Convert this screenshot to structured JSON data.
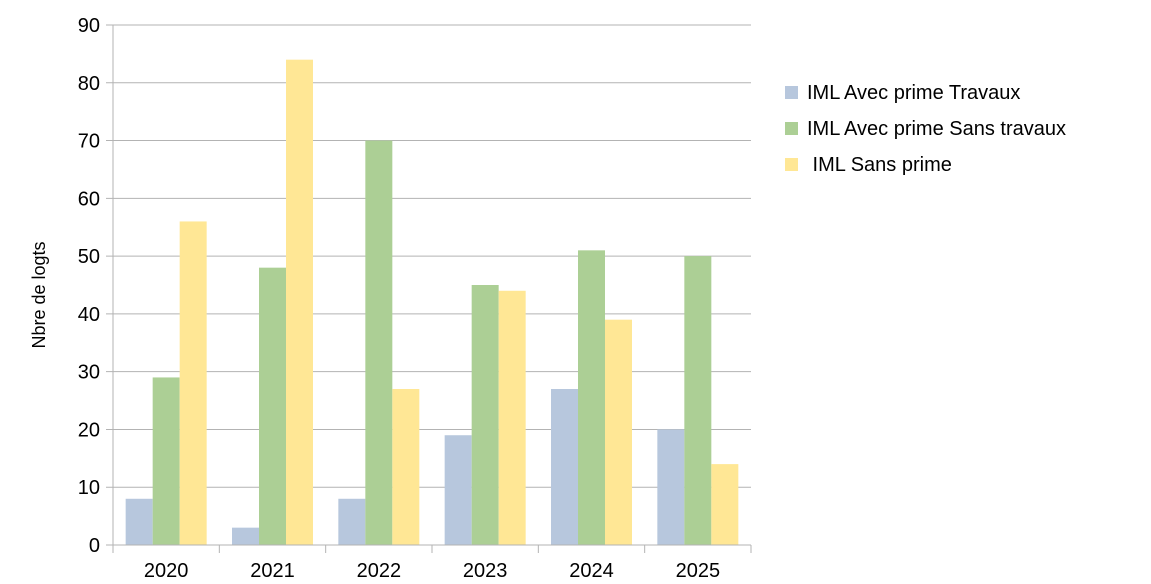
{
  "chart_data": {
    "type": "bar",
    "title": "",
    "xlabel": "",
    "ylabel": "Nbre de logts",
    "ylim": [
      0,
      90
    ],
    "yticks": [
      "0",
      "10",
      "20",
      "30",
      "40",
      "50",
      "60",
      "70",
      "80",
      "90"
    ],
    "categories": [
      "2020",
      "2021",
      "2022",
      "2023",
      "2024",
      "2025"
    ],
    "grid": true,
    "legend_position": "right",
    "series": [
      {
        "name": "IML Avec prime Travaux",
        "color": "#b7c7dd",
        "values": [
          8,
          3,
          8,
          19,
          27,
          20
        ]
      },
      {
        "name": "IML Avec prime Sans travaux",
        "color": "#accf95",
        "values": [
          29,
          48,
          70,
          45,
          51,
          50
        ]
      },
      {
        "name": " IML Sans prime",
        "color": "#ffe795",
        "values": [
          56,
          84,
          27,
          44,
          39,
          14
        ]
      }
    ]
  }
}
